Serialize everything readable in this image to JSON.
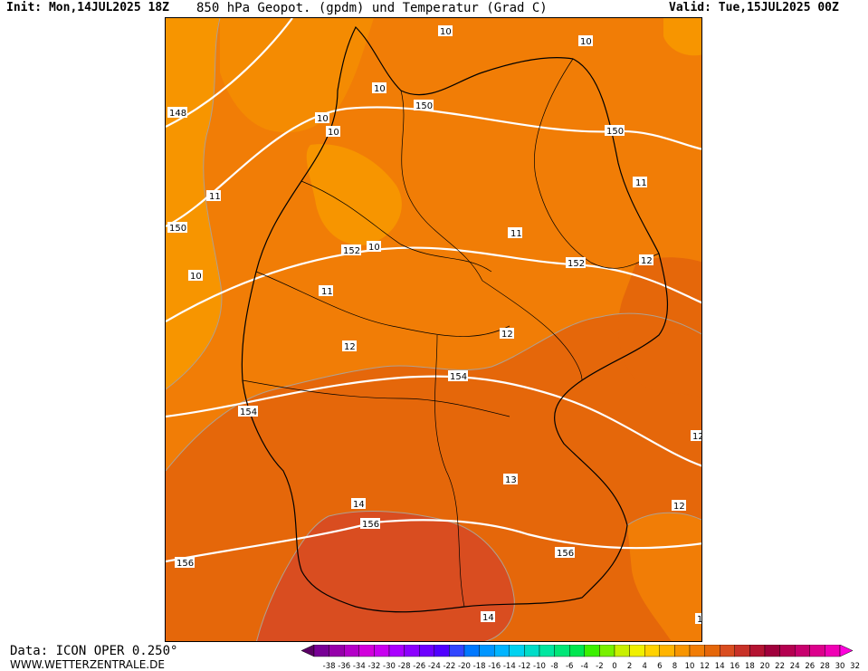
{
  "header": {
    "init": "Init: Mon,14JUL2025 18Z",
    "title": "850 hPa Geopot. (gpdm) und Temperatur (Grad C)",
    "valid": "Valid: Tue,15JUL2025 00Z"
  },
  "footer": {
    "data_source": "Data: ICON OPER 0.250°",
    "website": "WWW.WETTERZENTRALE.DE"
  },
  "map": {
    "geopotential_labels": [
      "148",
      "150",
      "150",
      "150",
      "152",
      "152",
      "154",
      "154",
      "156",
      "156",
      "156"
    ],
    "temperature_labels": [
      "10",
      "10",
      "10",
      "10",
      "10",
      "10",
      "10",
      "11",
      "11",
      "11",
      "11",
      "12",
      "12",
      "12",
      "12",
      "12",
      "12",
      "13",
      "14",
      "14",
      "1"
    ],
    "colors": {
      "t8_10": "#f79500",
      "t10_12": "#f17d06",
      "t12_14": "#e5670a",
      "t14_16": "#d94d20",
      "geopotential_line": "#ffffff",
      "temperature_line": "#b0a090",
      "border_line": "#000000"
    }
  },
  "colorbar": {
    "ticks": [
      "-38",
      "-36",
      "-34",
      "-32",
      "-30",
      "-28",
      "-26",
      "-24",
      "-22",
      "-20",
      "-18",
      "-16",
      "-14",
      "-12",
      "-10",
      "-8",
      "-6",
      "-4",
      "-2",
      "0",
      "2",
      "4",
      "6",
      "8",
      "10",
      "12",
      "14",
      "16",
      "18",
      "20",
      "22",
      "24",
      "26",
      "28",
      "30",
      "32"
    ],
    "colors": [
      "#5a0064",
      "#780096",
      "#9600aa",
      "#b400c8",
      "#d200dc",
      "#c800f0",
      "#aa00ff",
      "#8c00ff",
      "#6e00ff",
      "#5000ff",
      "#3246ff",
      "#0078ff",
      "#0096ff",
      "#00b4ff",
      "#00d2f0",
      "#00dcc8",
      "#00e6a0",
      "#00e678",
      "#00e650",
      "#3cf000",
      "#78f000",
      "#c8f000",
      "#f0f000",
      "#ffd200",
      "#ffb400",
      "#f79500",
      "#f17d06",
      "#e5670a",
      "#d94d20",
      "#c83228",
      "#b41432",
      "#a0003c",
      "#b40050",
      "#c8006e",
      "#dc008c",
      "#f000b4",
      "#ff00dc"
    ]
  }
}
